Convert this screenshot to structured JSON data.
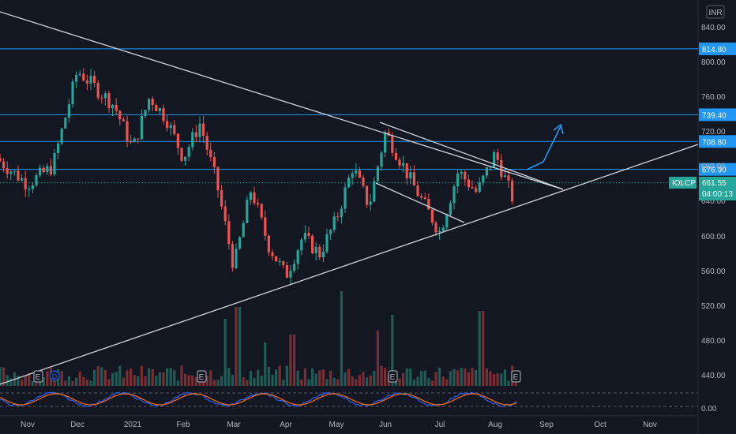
{
  "currency_label": "INR",
  "chart_data": {
    "type": "candlestick",
    "symbol": "IOLCP",
    "last_price": 661.55,
    "countdown": "04:00:13",
    "y_axis": {
      "range": [
        435,
        855
      ],
      "ticks": [
        840,
        800,
        760,
        720,
        680,
        640,
        600,
        560,
        520,
        480,
        440
      ]
    },
    "x_axis_labels": [
      "Nov",
      "Dec",
      "2021",
      "Feb",
      "Mar",
      "Apr",
      "May",
      "Jun",
      "Jul",
      "Aug",
      "Sep",
      "Oct",
      "Nov"
    ],
    "horizontal_levels": [
      814.8,
      739.4,
      708.8,
      676.9
    ],
    "trendlines": [
      {
        "name": "upper-triangle-line",
        "from": [
          "Oct",
          865
        ],
        "to": [
          "Sep",
          655
        ]
      },
      {
        "name": "lower-triangle-line",
        "from": [
          "Oct",
          445
        ],
        "to": [
          "Nov",
          708
        ]
      },
      {
        "name": "short-resistance-line",
        "from": [
          "Jun",
          730
        ],
        "to": [
          "Sep",
          655
        ]
      },
      {
        "name": "short-support-line",
        "from": [
          "Jun",
          660
        ],
        "to": [
          "Jul",
          620
        ]
      }
    ],
    "earnings_markers": [
      "Nov",
      "Feb",
      "Jun",
      "Aug"
    ],
    "dividend_marker": "Nov",
    "price_path": [
      {
        "t": "Oct",
        "p": 690
      },
      {
        "t": "Nov",
        "p": 660
      },
      {
        "t": "Nov",
        "p": 680
      },
      {
        "t": "Dec",
        "p": 790
      },
      {
        "t": "Dec",
        "p": 770
      },
      {
        "t": "Dec",
        "p": 750
      },
      {
        "t": "2021",
        "p": 700
      },
      {
        "t": "2021",
        "p": 760
      },
      {
        "t": "2021",
        "p": 735
      },
      {
        "t": "Feb",
        "p": 690
      },
      {
        "t": "Feb",
        "p": 730
      },
      {
        "t": "Feb",
        "p": 660
      },
      {
        "t": "Mar",
        "p": 565
      },
      {
        "t": "Mar",
        "p": 655
      },
      {
        "t": "Mar",
        "p": 590
      },
      {
        "t": "Apr",
        "p": 555
      },
      {
        "t": "Apr",
        "p": 600
      },
      {
        "t": "Apr",
        "p": 580
      },
      {
        "t": "May",
        "p": 620
      },
      {
        "t": "May",
        "p": 680
      },
      {
        "t": "May",
        "p": 635
      },
      {
        "t": "Jun",
        "p": 720
      },
      {
        "t": "Jun",
        "p": 660
      },
      {
        "t": "Jul",
        "p": 605
      },
      {
        "t": "Jul",
        "p": 675
      },
      {
        "t": "Jul",
        "p": 650
      },
      {
        "t": "Aug",
        "p": 695
      },
      {
        "t": "Aug",
        "p": 645
      },
      {
        "t": "Aug",
        "p": 661.55
      }
    ],
    "projection_arrow": [
      {
        "t": "Aug",
        "p": 678
      },
      {
        "t": "Sep",
        "p": 695
      },
      {
        "t": "Sep",
        "p": 728
      }
    ],
    "volume": "bars at bottom, spikes around Mar, Apr-May, Jun, Aug",
    "oscillator": {
      "ticks": [
        0.0
      ],
      "lines": [
        "blue",
        "orange"
      ]
    }
  }
}
